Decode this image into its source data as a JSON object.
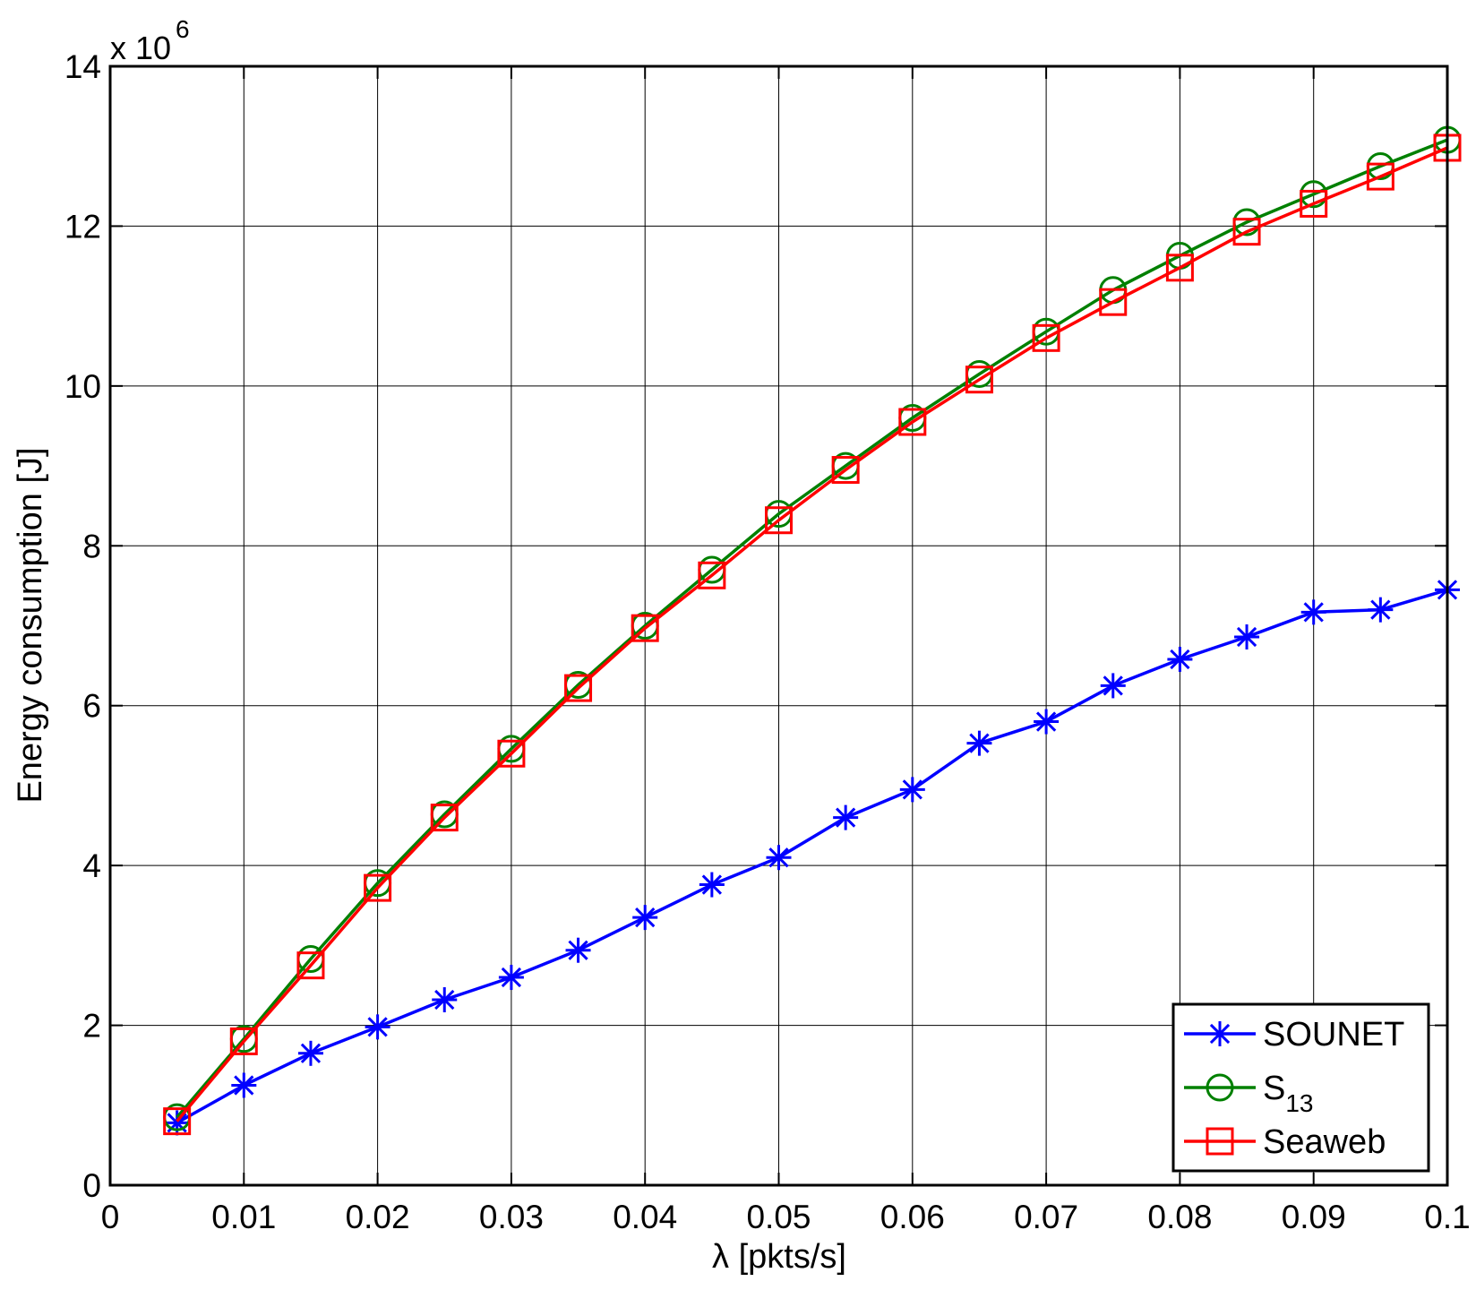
{
  "chart_data": {
    "type": "line",
    "title": "",
    "xlabel": "λ [pkts/s]",
    "ylabel": "Energy consumption [J]",
    "y_multiplier": {
      "base": "x 10",
      "exponent": "6"
    },
    "xlim": [
      0,
      0.1
    ],
    "ylim": [
      0,
      14
    ],
    "grid": true,
    "legend_position": "bottom-right",
    "x_ticks": [
      0,
      0.01,
      0.02,
      0.03,
      0.04,
      0.05,
      0.06,
      0.07,
      0.08,
      0.09,
      0.1
    ],
    "x_tick_labels": [
      "0",
      "0.01",
      "0.02",
      "0.03",
      "0.04",
      "0.05",
      "0.06",
      "0.07",
      "0.08",
      "0.09",
      "0.1"
    ],
    "y_ticks": [
      0,
      2,
      4,
      6,
      8,
      10,
      12,
      14
    ],
    "y_tick_labels": [
      "0",
      "2",
      "4",
      "6",
      "8",
      "10",
      "12",
      "14"
    ],
    "x": [
      0.005,
      0.01,
      0.015,
      0.02,
      0.025,
      0.03,
      0.035,
      0.04,
      0.045,
      0.05,
      0.055,
      0.06,
      0.065,
      0.07,
      0.075,
      0.08,
      0.085,
      0.09,
      0.095,
      0.1
    ],
    "series": [
      {
        "name": "SOUNET",
        "color": "#0000ff",
        "marker": "asterisk",
        "values": [
          0.78,
          1.25,
          1.65,
          1.98,
          2.32,
          2.6,
          2.94,
          3.35,
          3.76,
          4.1,
          4.6,
          4.95,
          5.53,
          5.8,
          6.25,
          6.58,
          6.86,
          7.17,
          7.2,
          7.45
        ]
      },
      {
        "name": "S",
        "name_subscript": "13",
        "color": "#008000",
        "marker": "circle",
        "values": [
          0.85,
          1.83,
          2.83,
          3.78,
          4.64,
          5.46,
          6.26,
          7.0,
          7.7,
          8.4,
          9.0,
          9.6,
          10.15,
          10.68,
          11.2,
          11.63,
          12.05,
          12.4,
          12.75,
          13.08
        ]
      },
      {
        "name": "Seaweb",
        "color": "#ff0000",
        "marker": "square",
        "values": [
          0.8,
          1.8,
          2.75,
          3.72,
          4.6,
          5.4,
          6.22,
          6.97,
          7.63,
          8.32,
          8.95,
          9.55,
          10.08,
          10.6,
          11.05,
          11.48,
          11.93,
          12.28,
          12.62,
          12.98
        ]
      }
    ]
  }
}
